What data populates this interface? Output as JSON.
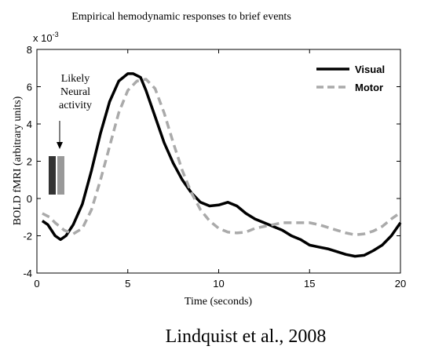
{
  "chart_data": {
    "type": "line",
    "title": "Empirical hemodynamic responses to brief events",
    "xlabel": "Time (seconds)",
    "ylabel": "BOLD fMRI (arbitrary units)",
    "y_exponent_label": "x 10",
    "y_exponent_power": "-3",
    "xlim": [
      0,
      20
    ],
    "ylim": [
      -4,
      8
    ],
    "x_ticks": [
      0,
      5,
      10,
      15,
      20
    ],
    "y_ticks": [
      -4,
      -2,
      0,
      2,
      4,
      6,
      8
    ],
    "grid": false,
    "legend_position": "top-right",
    "series": [
      {
        "name": "Visual",
        "color": "#000000",
        "style": "solid",
        "x": [
          0.3,
          0.6,
          1.0,
          1.3,
          1.6,
          2.0,
          2.5,
          3.0,
          3.5,
          4.0,
          4.5,
          5.0,
          5.3,
          5.7,
          6.0,
          6.5,
          7.0,
          7.5,
          8.0,
          8.5,
          9.0,
          9.5,
          10.0,
          10.5,
          11.0,
          11.5,
          12.0,
          12.5,
          13.0,
          13.5,
          14.0,
          14.5,
          15.0,
          15.5,
          16.0,
          16.5,
          17.0,
          17.5,
          18.0,
          18.5,
          19.0,
          19.5,
          20.0
        ],
        "y": [
          -1.2,
          -1.4,
          -2.0,
          -2.2,
          -2.0,
          -1.4,
          -0.3,
          1.5,
          3.5,
          5.2,
          6.3,
          6.7,
          6.7,
          6.5,
          5.8,
          4.4,
          3.0,
          1.9,
          1.0,
          0.3,
          -0.2,
          -0.4,
          -0.35,
          -0.2,
          -0.4,
          -0.8,
          -1.1,
          -1.3,
          -1.5,
          -1.7,
          -2.0,
          -2.2,
          -2.5,
          -2.6,
          -2.7,
          -2.85,
          -3.0,
          -3.1,
          -3.05,
          -2.8,
          -2.5,
          -2.0,
          -1.3
        ]
      },
      {
        "name": "Motor",
        "color": "#aaaaaa",
        "style": "dashed",
        "x": [
          0.3,
          0.7,
          1.0,
          1.5,
          2.0,
          2.5,
          3.0,
          3.5,
          4.0,
          4.5,
          5.0,
          5.5,
          6.0,
          6.5,
          7.0,
          7.5,
          8.0,
          8.5,
          9.0,
          9.5,
          10.0,
          10.5,
          11.0,
          11.5,
          12.0,
          12.5,
          13.0,
          13.5,
          14.0,
          14.5,
          15.0,
          15.5,
          16.0,
          16.5,
          17.0,
          17.5,
          18.0,
          18.5,
          19.0,
          19.5,
          20.0
        ],
        "y": [
          -0.8,
          -1.0,
          -1.3,
          -1.7,
          -1.9,
          -1.6,
          -0.6,
          1.0,
          2.8,
          4.6,
          5.8,
          6.3,
          6.4,
          5.9,
          4.6,
          3.0,
          1.5,
          0.3,
          -0.6,
          -1.2,
          -1.6,
          -1.8,
          -1.85,
          -1.8,
          -1.6,
          -1.5,
          -1.4,
          -1.3,
          -1.3,
          -1.3,
          -1.3,
          -1.4,
          -1.55,
          -1.7,
          -1.85,
          -1.95,
          -1.9,
          -1.75,
          -1.5,
          -1.1,
          -0.75
        ]
      }
    ],
    "annotations": {
      "neural_text": [
        "Likely",
        "Neural",
        "activity"
      ],
      "bars": [
        {
          "color": "#333333"
        },
        {
          "color": "#999999"
        }
      ]
    }
  },
  "citation": "Lindquist et al., 2008"
}
